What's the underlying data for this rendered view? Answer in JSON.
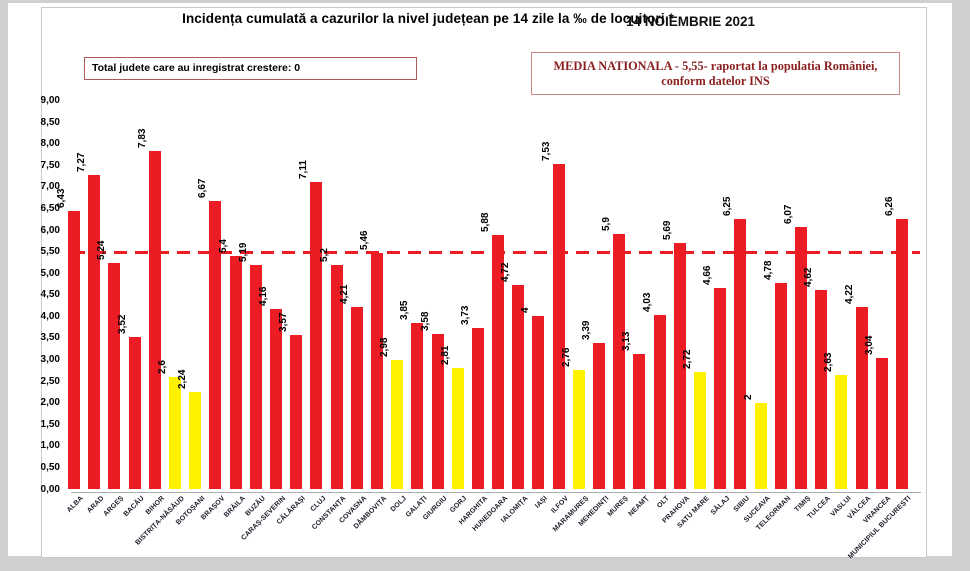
{
  "page": {
    "title": "Incidența cumulată a cazurilor la nivel județean pe 14 zile la ‰ de locuitori *",
    "date": "14 NOIEMBRIE 2021",
    "left_note": "Total judete care au inregistrat crestere: 0",
    "right_note_line1": "MEDIA NATIONALA - 5,55-  raportat la populatia  României,",
    "right_note_line2": "conform datelor INS"
  },
  "chart_data": {
    "type": "bar",
    "title": "Incidența cumulată a cazurilor la nivel județean pe 14 zile la ‰ de locuitori *",
    "xlabel": "",
    "ylabel": "",
    "ylim": [
      0,
      9
    ],
    "y_step": 0.5,
    "y_tick_labels": [
      "0,00",
      "0,50",
      "1,00",
      "1,50",
      "2,00",
      "2,50",
      "3,00",
      "3,50",
      "4,00",
      "4,50",
      "5,00",
      "5,50",
      "6,00",
      "6,50",
      "7,00",
      "7,50",
      "8,00",
      "8,50",
      "9,00"
    ],
    "grid": false,
    "legend": false,
    "average_line_value": 5.55,
    "low_threshold": 3,
    "colors": {
      "red": "#ec1c24",
      "yellow": "#fff200",
      "average_line": "#ec1c24"
    },
    "bars": [
      {
        "name": "ALBA",
        "value": 6.43,
        "label": "6,43",
        "color": "red"
      },
      {
        "name": "ARAD",
        "value": 7.27,
        "label": "7,27",
        "color": "red"
      },
      {
        "name": "ARGEȘ",
        "value": 5.24,
        "label": "5,24",
        "color": "red"
      },
      {
        "name": "BACĂU",
        "value": 3.52,
        "label": "3,52",
        "color": "red"
      },
      {
        "name": "BIHOR",
        "value": 7.83,
        "label": "7,83",
        "color": "red"
      },
      {
        "name": "BISTRIȚA-NĂSĂUD",
        "value": 2.6,
        "label": "2,6",
        "color": "yellow"
      },
      {
        "name": "BOTOȘANI",
        "value": 2.24,
        "label": "2,24",
        "color": "yellow"
      },
      {
        "name": "BRAȘOV",
        "value": 6.67,
        "label": "6,67",
        "color": "red"
      },
      {
        "name": "BRĂILA",
        "value": 5.4,
        "label": "5,4",
        "color": "red"
      },
      {
        "name": "BUZĂU",
        "value": 5.19,
        "label": "5,19",
        "color": "red"
      },
      {
        "name": "CARAȘ-SEVERIN",
        "value": 4.16,
        "label": "4,16",
        "color": "red"
      },
      {
        "name": "CĂLĂRAȘI",
        "value": 3.57,
        "label": "3,57",
        "color": "red"
      },
      {
        "name": "CLUJ",
        "value": 7.11,
        "label": "7,11",
        "color": "red"
      },
      {
        "name": "CONSTANȚA",
        "value": 5.2,
        "label": "5,2",
        "color": "red"
      },
      {
        "name": "COVASNA",
        "value": 4.21,
        "label": "4,21",
        "color": "red"
      },
      {
        "name": "DÂMBOVIȚA",
        "value": 5.46,
        "label": "5,46",
        "color": "red"
      },
      {
        "name": "DOLJ",
        "value": 2.98,
        "label": "2,98",
        "color": "yellow"
      },
      {
        "name": "GALAȚI",
        "value": 3.85,
        "label": "3,85",
        "color": "red"
      },
      {
        "name": "GIURGIU",
        "value": 3.58,
        "label": "3,58",
        "color": "red"
      },
      {
        "name": "GORJ",
        "value": 2.81,
        "label": "2,81",
        "color": "yellow"
      },
      {
        "name": "HARGHITA",
        "value": 3.73,
        "label": "3,73",
        "color": "red"
      },
      {
        "name": "HUNEDOARA",
        "value": 5.88,
        "label": "5,88",
        "color": "red"
      },
      {
        "name": "IALOMIȚA",
        "value": 4.72,
        "label": "4,72",
        "color": "red"
      },
      {
        "name": "IAȘI",
        "value": 4,
        "label": "4",
        "color": "red"
      },
      {
        "name": "ILFOV",
        "value": 7.53,
        "label": "7,53",
        "color": "red"
      },
      {
        "name": "MARAMUREȘ",
        "value": 2.76,
        "label": "2,76",
        "color": "yellow"
      },
      {
        "name": "MEHEDINȚI",
        "value": 3.39,
        "label": "3,39",
        "color": "red"
      },
      {
        "name": "MUREȘ",
        "value": 5.9,
        "label": "5,9",
        "color": "red"
      },
      {
        "name": "NEAMȚ",
        "value": 3.13,
        "label": "3,13",
        "color": "red"
      },
      {
        "name": "OLT",
        "value": 4.03,
        "label": "4,03",
        "color": "red"
      },
      {
        "name": "PRAHOVA",
        "value": 5.69,
        "label": "5,69",
        "color": "red"
      },
      {
        "name": "SATU MARE",
        "value": 2.72,
        "label": "2,72",
        "color": "yellow"
      },
      {
        "name": "SĂLAJ",
        "value": 4.66,
        "label": "4,66",
        "color": "red"
      },
      {
        "name": "SIBIU",
        "value": 6.25,
        "label": "6,25",
        "color": "red"
      },
      {
        "name": "SUCEAVA",
        "value": 2,
        "label": "2",
        "color": "yellow"
      },
      {
        "name": "TELEORMAN",
        "value": 4.78,
        "label": "4,78",
        "color": "red"
      },
      {
        "name": "TIMIȘ",
        "value": 6.07,
        "label": "6,07",
        "color": "red"
      },
      {
        "name": "TULCEA",
        "value": 4.62,
        "label": "4,62",
        "color": "red"
      },
      {
        "name": "VASLUI",
        "value": 2.63,
        "label": "2,63",
        "color": "yellow"
      },
      {
        "name": "VÂLCEA",
        "value": 4.22,
        "label": "4,22",
        "color": "red"
      },
      {
        "name": "VRANCEA",
        "value": 3.04,
        "label": "3,04",
        "color": "red"
      },
      {
        "name": "MUNICIPIUL BUCUREȘTI",
        "value": 6.26,
        "label": "6,26",
        "color": "red"
      }
    ]
  }
}
